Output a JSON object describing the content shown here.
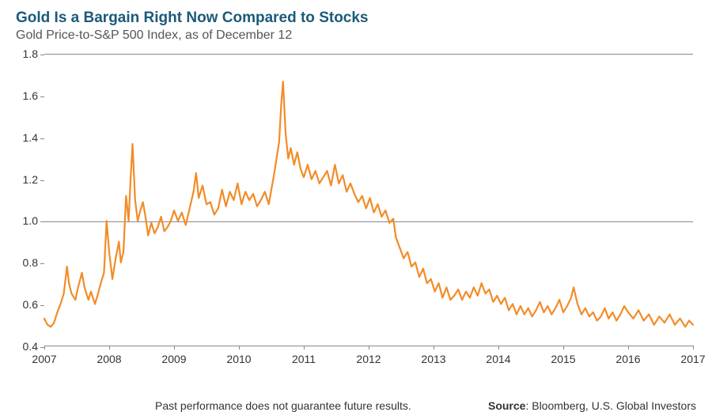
{
  "title": "Gold Is a Bargain Right Now Compared to Stocks",
  "title_color": "#1b5a7a",
  "subtitle": "Gold Price-to-S&P 500 Index, as of December 12",
  "chart": {
    "type": "line",
    "line_color": "#f28c28",
    "line_width": 2.2,
    "background_color": "#ffffff",
    "border_color": "#888888",
    "text_color": "#333333",
    "xlim": [
      2007,
      2017
    ],
    "ylim": [
      0.4,
      1.8
    ],
    "ytick_step": 0.2,
    "yticks": [
      0.4,
      0.6,
      0.8,
      1.0,
      1.2,
      1.4,
      1.6,
      1.8
    ],
    "xticks": [
      2007,
      2008,
      2009,
      2010,
      2011,
      2012,
      2013,
      2014,
      2015,
      2016,
      2017
    ],
    "reference_line": 1.0,
    "series": [
      {
        "x": 2007.0,
        "y": 0.53
      },
      {
        "x": 2007.05,
        "y": 0.5
      },
      {
        "x": 2007.1,
        "y": 0.49
      },
      {
        "x": 2007.15,
        "y": 0.51
      },
      {
        "x": 2007.2,
        "y": 0.56
      },
      {
        "x": 2007.25,
        "y": 0.6
      },
      {
        "x": 2007.3,
        "y": 0.65
      },
      {
        "x": 2007.35,
        "y": 0.78
      },
      {
        "x": 2007.38,
        "y": 0.7
      },
      {
        "x": 2007.42,
        "y": 0.65
      },
      {
        "x": 2007.48,
        "y": 0.62
      },
      {
        "x": 2007.52,
        "y": 0.68
      },
      {
        "x": 2007.58,
        "y": 0.75
      },
      {
        "x": 2007.62,
        "y": 0.68
      },
      {
        "x": 2007.68,
        "y": 0.62
      },
      {
        "x": 2007.72,
        "y": 0.66
      },
      {
        "x": 2007.78,
        "y": 0.6
      },
      {
        "x": 2007.82,
        "y": 0.64
      },
      {
        "x": 2007.88,
        "y": 0.71
      },
      {
        "x": 2007.92,
        "y": 0.75
      },
      {
        "x": 2007.96,
        "y": 1.0
      },
      {
        "x": 2008.0,
        "y": 0.85
      },
      {
        "x": 2008.05,
        "y": 0.72
      },
      {
        "x": 2008.1,
        "y": 0.82
      },
      {
        "x": 2008.15,
        "y": 0.9
      },
      {
        "x": 2008.18,
        "y": 0.8
      },
      {
        "x": 2008.22,
        "y": 0.85
      },
      {
        "x": 2008.26,
        "y": 1.12
      },
      {
        "x": 2008.3,
        "y": 1.0
      },
      {
        "x": 2008.33,
        "y": 1.2
      },
      {
        "x": 2008.36,
        "y": 1.37
      },
      {
        "x": 2008.4,
        "y": 1.1
      },
      {
        "x": 2008.44,
        "y": 1.0
      },
      {
        "x": 2008.48,
        "y": 1.05
      },
      {
        "x": 2008.52,
        "y": 1.09
      },
      {
        "x": 2008.56,
        "y": 1.02
      },
      {
        "x": 2008.6,
        "y": 0.93
      },
      {
        "x": 2008.65,
        "y": 0.99
      },
      {
        "x": 2008.7,
        "y": 0.94
      },
      {
        "x": 2008.75,
        "y": 0.97
      },
      {
        "x": 2008.8,
        "y": 1.02
      },
      {
        "x": 2008.85,
        "y": 0.95
      },
      {
        "x": 2008.9,
        "y": 0.97
      },
      {
        "x": 2008.95,
        "y": 1.0
      },
      {
        "x": 2009.0,
        "y": 1.05
      },
      {
        "x": 2009.06,
        "y": 1.0
      },
      {
        "x": 2009.12,
        "y": 1.04
      },
      {
        "x": 2009.18,
        "y": 0.98
      },
      {
        "x": 2009.24,
        "y": 1.06
      },
      {
        "x": 2009.3,
        "y": 1.14
      },
      {
        "x": 2009.34,
        "y": 1.23
      },
      {
        "x": 2009.38,
        "y": 1.11
      },
      {
        "x": 2009.44,
        "y": 1.17
      },
      {
        "x": 2009.5,
        "y": 1.08
      },
      {
        "x": 2009.56,
        "y": 1.09
      },
      {
        "x": 2009.62,
        "y": 1.03
      },
      {
        "x": 2009.68,
        "y": 1.06
      },
      {
        "x": 2009.74,
        "y": 1.15
      },
      {
        "x": 2009.8,
        "y": 1.07
      },
      {
        "x": 2009.86,
        "y": 1.14
      },
      {
        "x": 2009.92,
        "y": 1.1
      },
      {
        "x": 2009.98,
        "y": 1.18
      },
      {
        "x": 2010.04,
        "y": 1.08
      },
      {
        "x": 2010.1,
        "y": 1.14
      },
      {
        "x": 2010.16,
        "y": 1.1
      },
      {
        "x": 2010.22,
        "y": 1.13
      },
      {
        "x": 2010.28,
        "y": 1.07
      },
      {
        "x": 2010.34,
        "y": 1.1
      },
      {
        "x": 2010.4,
        "y": 1.14
      },
      {
        "x": 2010.46,
        "y": 1.08
      },
      {
        "x": 2010.5,
        "y": 1.15
      },
      {
        "x": 2010.54,
        "y": 1.22
      },
      {
        "x": 2010.58,
        "y": 1.3
      },
      {
        "x": 2010.62,
        "y": 1.38
      },
      {
        "x": 2010.65,
        "y": 1.55
      },
      {
        "x": 2010.68,
        "y": 1.67
      },
      {
        "x": 2010.72,
        "y": 1.42
      },
      {
        "x": 2010.76,
        "y": 1.3
      },
      {
        "x": 2010.8,
        "y": 1.35
      },
      {
        "x": 2010.85,
        "y": 1.27
      },
      {
        "x": 2010.9,
        "y": 1.33
      },
      {
        "x": 2010.95,
        "y": 1.25
      },
      {
        "x": 2011.0,
        "y": 1.21
      },
      {
        "x": 2011.06,
        "y": 1.27
      },
      {
        "x": 2011.12,
        "y": 1.2
      },
      {
        "x": 2011.18,
        "y": 1.24
      },
      {
        "x": 2011.24,
        "y": 1.18
      },
      {
        "x": 2011.3,
        "y": 1.21
      },
      {
        "x": 2011.36,
        "y": 1.24
      },
      {
        "x": 2011.42,
        "y": 1.17
      },
      {
        "x": 2011.48,
        "y": 1.27
      },
      {
        "x": 2011.54,
        "y": 1.18
      },
      {
        "x": 2011.6,
        "y": 1.22
      },
      {
        "x": 2011.66,
        "y": 1.14
      },
      {
        "x": 2011.72,
        "y": 1.18
      },
      {
        "x": 2011.78,
        "y": 1.13
      },
      {
        "x": 2011.84,
        "y": 1.09
      },
      {
        "x": 2011.9,
        "y": 1.12
      },
      {
        "x": 2011.96,
        "y": 1.06
      },
      {
        "x": 2012.02,
        "y": 1.11
      },
      {
        "x": 2012.08,
        "y": 1.04
      },
      {
        "x": 2012.14,
        "y": 1.08
      },
      {
        "x": 2012.2,
        "y": 1.02
      },
      {
        "x": 2012.26,
        "y": 1.05
      },
      {
        "x": 2012.32,
        "y": 0.99
      },
      {
        "x": 2012.38,
        "y": 1.01
      },
      {
        "x": 2012.42,
        "y": 0.92
      },
      {
        "x": 2012.48,
        "y": 0.87
      },
      {
        "x": 2012.54,
        "y": 0.82
      },
      {
        "x": 2012.6,
        "y": 0.85
      },
      {
        "x": 2012.66,
        "y": 0.78
      },
      {
        "x": 2012.72,
        "y": 0.8
      },
      {
        "x": 2012.78,
        "y": 0.73
      },
      {
        "x": 2012.84,
        "y": 0.77
      },
      {
        "x": 2012.9,
        "y": 0.7
      },
      {
        "x": 2012.96,
        "y": 0.72
      },
      {
        "x": 2013.02,
        "y": 0.66
      },
      {
        "x": 2013.08,
        "y": 0.7
      },
      {
        "x": 2013.14,
        "y": 0.63
      },
      {
        "x": 2013.2,
        "y": 0.68
      },
      {
        "x": 2013.26,
        "y": 0.62
      },
      {
        "x": 2013.32,
        "y": 0.64
      },
      {
        "x": 2013.38,
        "y": 0.67
      },
      {
        "x": 2013.44,
        "y": 0.62
      },
      {
        "x": 2013.5,
        "y": 0.66
      },
      {
        "x": 2013.56,
        "y": 0.63
      },
      {
        "x": 2013.62,
        "y": 0.68
      },
      {
        "x": 2013.68,
        "y": 0.64
      },
      {
        "x": 2013.74,
        "y": 0.7
      },
      {
        "x": 2013.8,
        "y": 0.65
      },
      {
        "x": 2013.86,
        "y": 0.67
      },
      {
        "x": 2013.92,
        "y": 0.61
      },
      {
        "x": 2013.98,
        "y": 0.64
      },
      {
        "x": 2014.04,
        "y": 0.6
      },
      {
        "x": 2014.1,
        "y": 0.63
      },
      {
        "x": 2014.16,
        "y": 0.57
      },
      {
        "x": 2014.22,
        "y": 0.6
      },
      {
        "x": 2014.28,
        "y": 0.55
      },
      {
        "x": 2014.34,
        "y": 0.59
      },
      {
        "x": 2014.4,
        "y": 0.55
      },
      {
        "x": 2014.46,
        "y": 0.58
      },
      {
        "x": 2014.52,
        "y": 0.54
      },
      {
        "x": 2014.58,
        "y": 0.57
      },
      {
        "x": 2014.64,
        "y": 0.61
      },
      {
        "x": 2014.7,
        "y": 0.56
      },
      {
        "x": 2014.76,
        "y": 0.59
      },
      {
        "x": 2014.82,
        "y": 0.55
      },
      {
        "x": 2014.88,
        "y": 0.58
      },
      {
        "x": 2014.94,
        "y": 0.62
      },
      {
        "x": 2015.0,
        "y": 0.56
      },
      {
        "x": 2015.06,
        "y": 0.59
      },
      {
        "x": 2015.12,
        "y": 0.63
      },
      {
        "x": 2015.16,
        "y": 0.68
      },
      {
        "x": 2015.22,
        "y": 0.6
      },
      {
        "x": 2015.28,
        "y": 0.55
      },
      {
        "x": 2015.34,
        "y": 0.58
      },
      {
        "x": 2015.4,
        "y": 0.54
      },
      {
        "x": 2015.46,
        "y": 0.56
      },
      {
        "x": 2015.52,
        "y": 0.52
      },
      {
        "x": 2015.58,
        "y": 0.54
      },
      {
        "x": 2015.64,
        "y": 0.58
      },
      {
        "x": 2015.7,
        "y": 0.53
      },
      {
        "x": 2015.76,
        "y": 0.56
      },
      {
        "x": 2015.82,
        "y": 0.52
      },
      {
        "x": 2015.88,
        "y": 0.55
      },
      {
        "x": 2015.94,
        "y": 0.59
      },
      {
        "x": 2016.0,
        "y": 0.56
      },
      {
        "x": 2016.08,
        "y": 0.53
      },
      {
        "x": 2016.16,
        "y": 0.57
      },
      {
        "x": 2016.24,
        "y": 0.52
      },
      {
        "x": 2016.32,
        "y": 0.55
      },
      {
        "x": 2016.4,
        "y": 0.5
      },
      {
        "x": 2016.48,
        "y": 0.54
      },
      {
        "x": 2016.56,
        "y": 0.51
      },
      {
        "x": 2016.64,
        "y": 0.55
      },
      {
        "x": 2016.72,
        "y": 0.5
      },
      {
        "x": 2016.8,
        "y": 0.53
      },
      {
        "x": 2016.88,
        "y": 0.49
      },
      {
        "x": 2016.94,
        "y": 0.52
      },
      {
        "x": 2017.0,
        "y": 0.5
      }
    ]
  },
  "disclaimer": "Past performance does not guarantee future results.",
  "source_label": "Source",
  "source_value": ": Bloomberg, U.S. Global Investors"
}
